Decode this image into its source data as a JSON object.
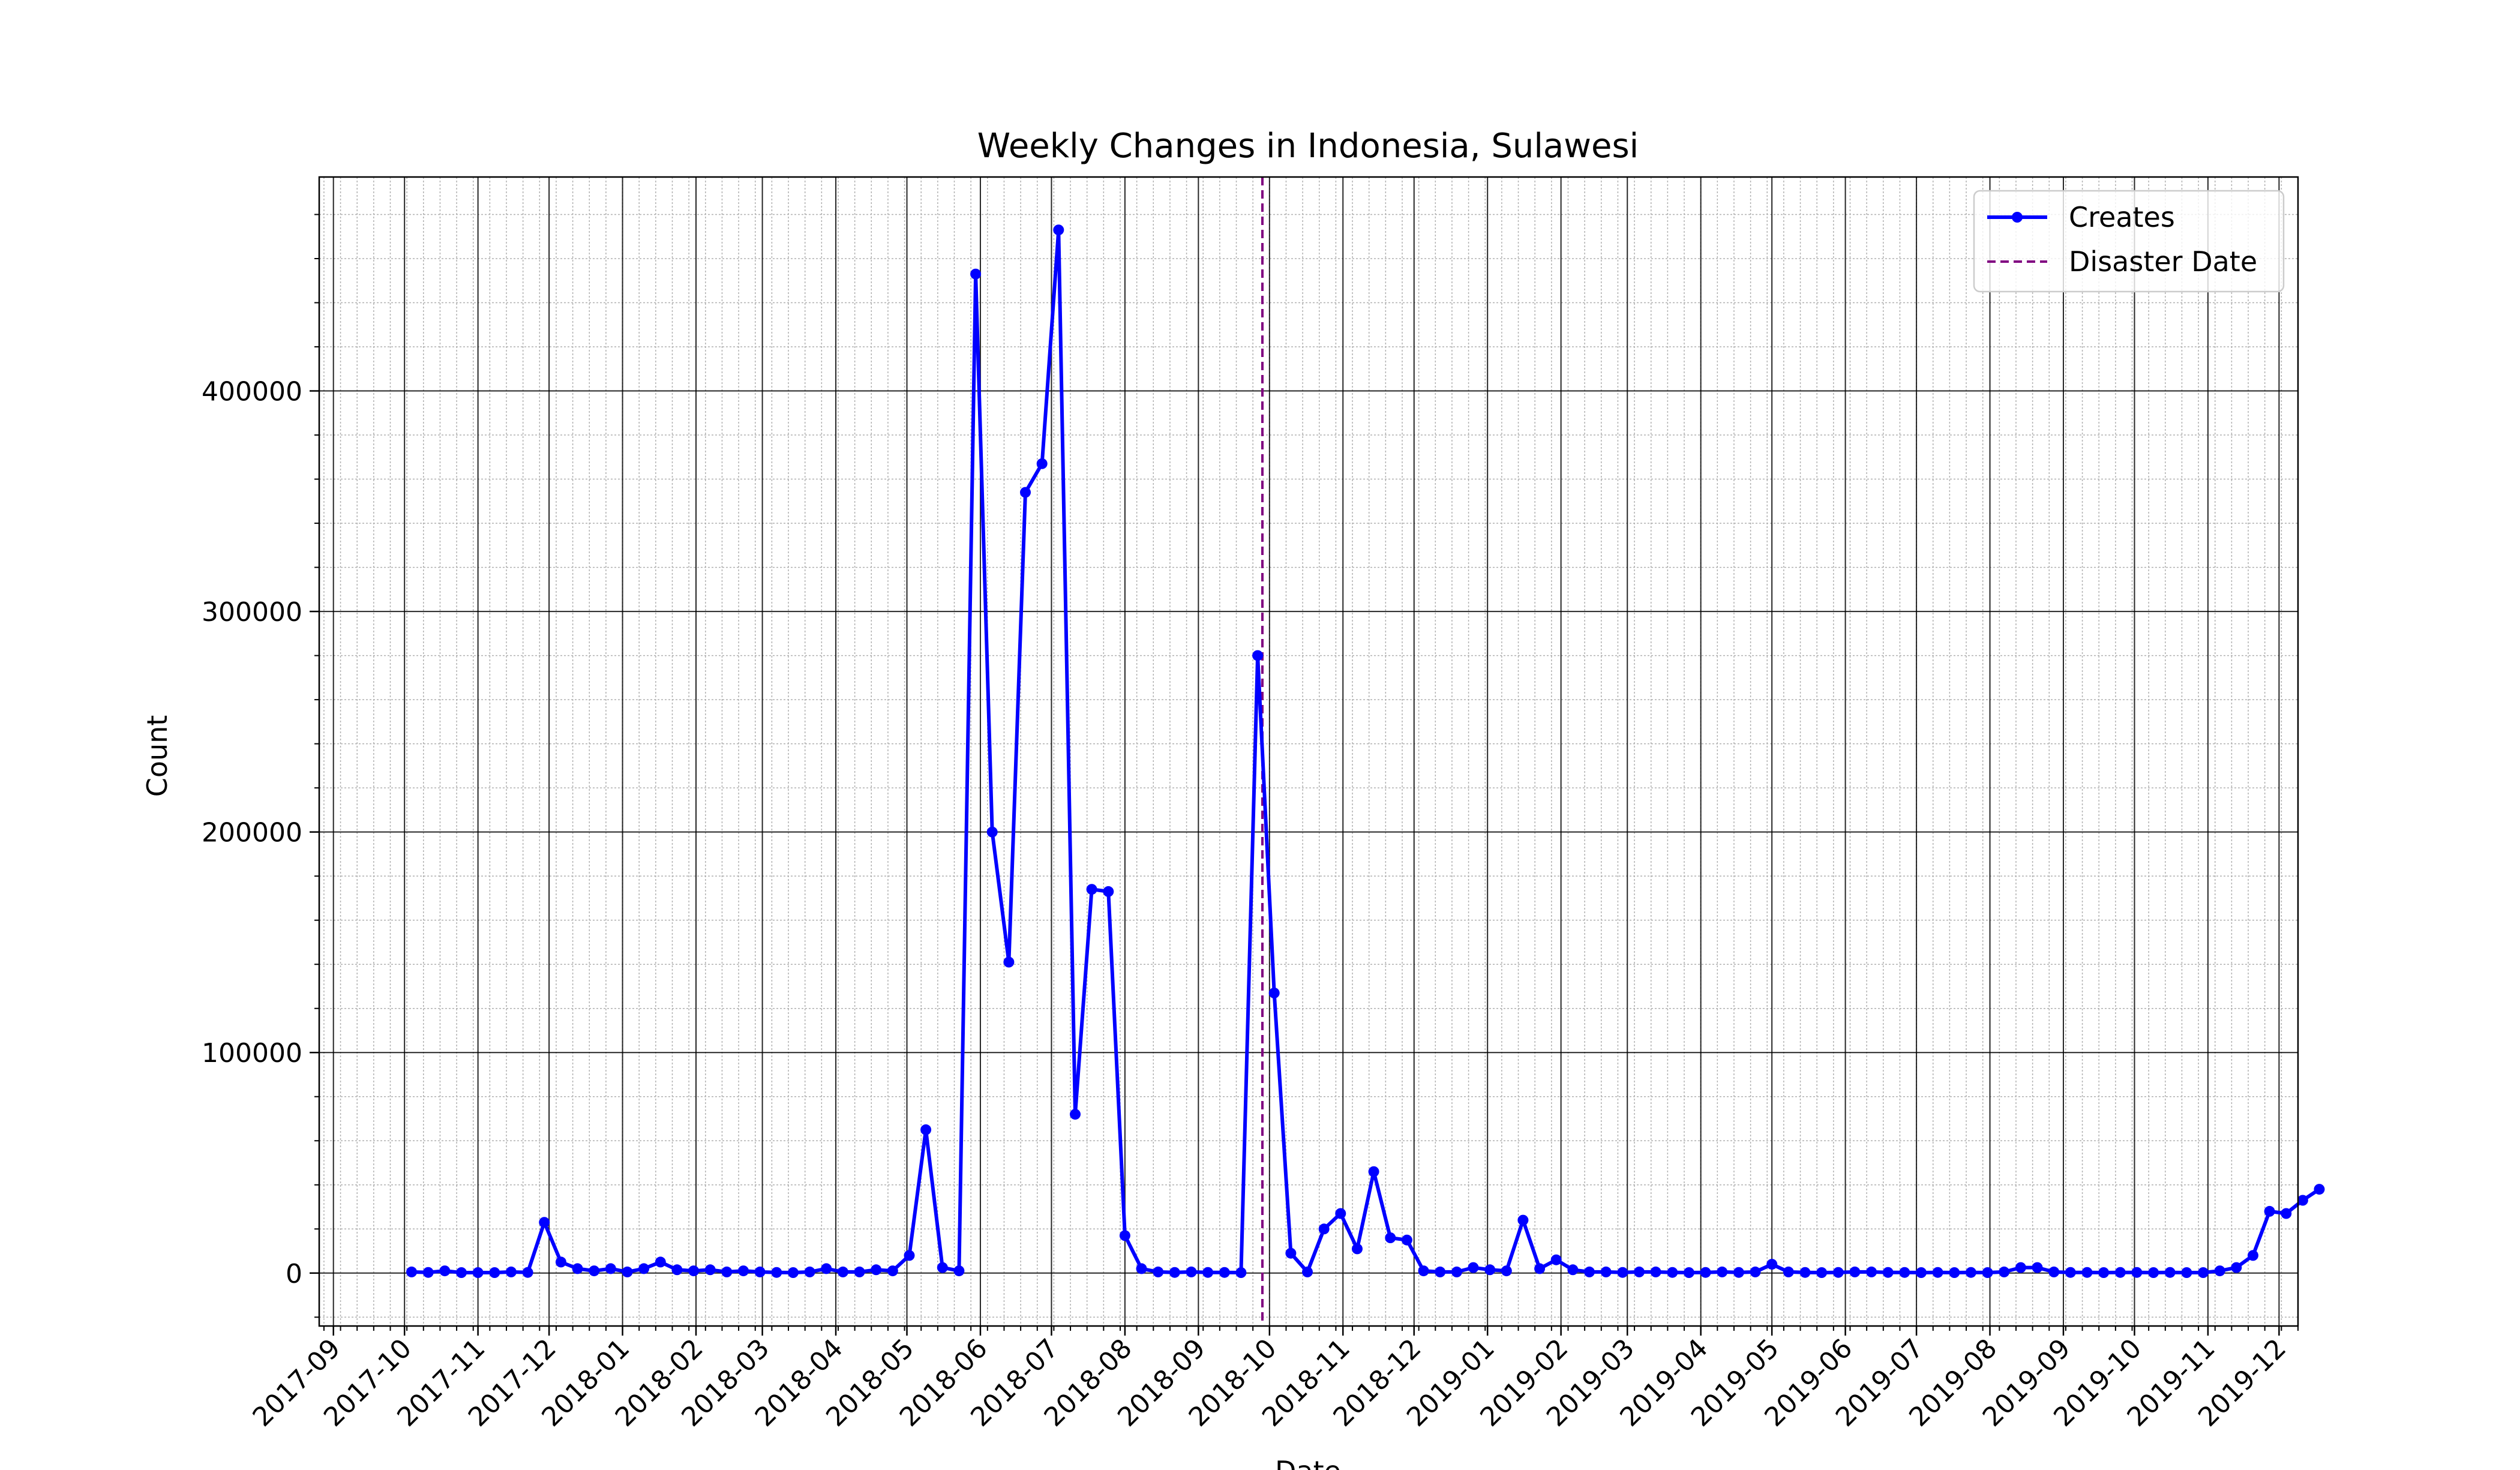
{
  "chart_data": {
    "type": "line",
    "title": "Weekly Changes in Indonesia, Sulawesi",
    "xlabel": "Date",
    "ylabel": "Count",
    "x_ticks": [
      "2017-09",
      "2017-10",
      "2017-11",
      "2017-12",
      "2018-01",
      "2018-02",
      "2018-03",
      "2018-04",
      "2018-05",
      "2018-06",
      "2018-07",
      "2018-08",
      "2018-09",
      "2018-10",
      "2018-11",
      "2018-12",
      "2019-01",
      "2019-02",
      "2019-03",
      "2019-04",
      "2019-05",
      "2019-06",
      "2019-07",
      "2019-08",
      "2019-09",
      "2019-10",
      "2019-11",
      "2019-12"
    ],
    "y_ticks": [
      0,
      100000,
      200000,
      300000,
      400000
    ],
    "xlim": [
      "2017-08-26",
      "2019-12-09"
    ],
    "ylim": [
      -24000,
      497000
    ],
    "grid": true,
    "legend_position": "top-right",
    "colors": {
      "series": "#0000ff",
      "disaster": "#800080",
      "major_grid": "#000000",
      "minor_grid": "#b0b0b0"
    },
    "start_date": "2017-10-04",
    "interval_days": 7,
    "series": [
      {
        "name": "Creates",
        "values": [
          500,
          300,
          1000,
          200,
          200,
          200,
          500,
          300,
          23000,
          5000,
          2000,
          1000,
          2000,
          500,
          2000,
          5000,
          1500,
          1000,
          1500,
          500,
          1000,
          500,
          300,
          200,
          500,
          2000,
          500,
          500,
          1500,
          1000,
          8000,
          65000,
          2500,
          1000,
          453000,
          200000,
          141000,
          354000,
          367000,
          473000,
          72000,
          174000,
          173000,
          17000,
          2000,
          500,
          300,
          500,
          300,
          300,
          200,
          280000,
          127000,
          9000,
          500,
          20000,
          27000,
          11000,
          46000,
          16000,
          15000,
          1000,
          500,
          500,
          2500,
          1500,
          1000,
          24000,
          2000,
          6000,
          1500,
          500,
          500,
          300,
          500,
          500,
          300,
          200,
          300,
          500,
          300,
          500,
          4000,
          500,
          300,
          200,
          300,
          500,
          500,
          300,
          300,
          200,
          300,
          200,
          300,
          200,
          500,
          2500,
          2500,
          500,
          300,
          300,
          200,
          300,
          300,
          200,
          300,
          200,
          200,
          1000,
          2500,
          8000,
          28000,
          27000,
          33000,
          38000
        ]
      }
    ],
    "disaster": {
      "name": "Disaster Date",
      "date": "2018-09-28"
    }
  }
}
